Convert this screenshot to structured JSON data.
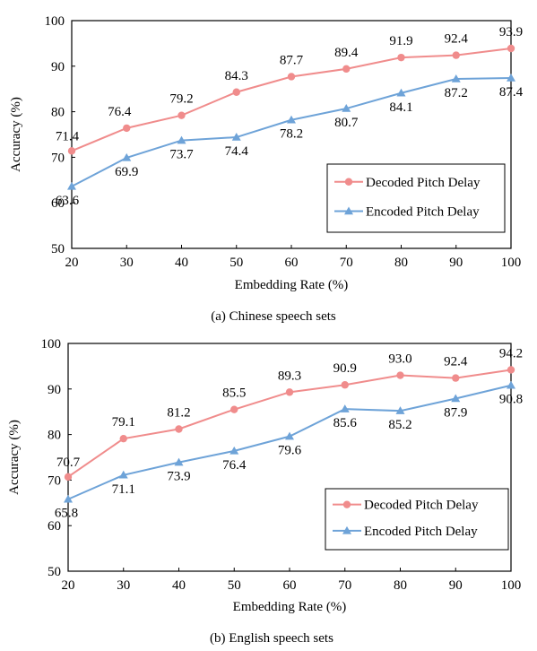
{
  "chart_data": [
    {
      "type": "line",
      "caption": "(a)  Chinese speech sets",
      "xlabel": "Embedding Rate (%)",
      "ylabel": "Accuracy (%)",
      "x": [
        20,
        30,
        40,
        50,
        60,
        70,
        80,
        90,
        100
      ],
      "xlim": [
        20,
        100
      ],
      "ylim": [
        50,
        100
      ],
      "yticks": [
        50,
        60,
        70,
        80,
        90,
        100
      ],
      "grid": false,
      "legend_position": "bottom-right",
      "series": [
        {
          "name": "Decoded Pitch Delay",
          "marker": "circle",
          "color": "#f08c8c",
          "values": [
            71.4,
            76.4,
            79.2,
            84.3,
            87.7,
            89.4,
            91.9,
            92.4,
            93.9
          ],
          "labels": [
            "71.4",
            "76.4",
            "79.2",
            "84.3",
            "87.7",
            "89.4",
            "91.9",
            "92.4",
            "93.9"
          ]
        },
        {
          "name": "Encoded Pitch Delay",
          "marker": "triangle",
          "color": "#6ea3d8",
          "values": [
            63.6,
            69.9,
            73.7,
            74.4,
            78.2,
            80.7,
            84.1,
            87.2,
            87.4
          ],
          "labels": [
            "63.6",
            "69.9",
            "73.7",
            "74.4",
            "78.2",
            "80.7",
            "84.1",
            "87.2",
            "87.4"
          ]
        }
      ]
    },
    {
      "type": "line",
      "caption": "(b)  English speech sets",
      "xlabel": "Embedding Rate (%)",
      "ylabel": "Accuracy (%)",
      "x": [
        20,
        30,
        40,
        50,
        60,
        70,
        80,
        90,
        100
      ],
      "xlim": [
        20,
        100
      ],
      "ylim": [
        50,
        100
      ],
      "yticks": [
        50,
        60,
        70,
        80,
        90,
        100
      ],
      "grid": false,
      "legend_position": "bottom-right",
      "series": [
        {
          "name": "Decoded Pitch Delay",
          "marker": "circle",
          "color": "#f08c8c",
          "values": [
            70.7,
            79.1,
            81.2,
            85.5,
            89.3,
            90.9,
            93.0,
            92.4,
            94.2
          ],
          "labels": [
            "70.7",
            "79.1",
            "81.2",
            "85.5",
            "89.3",
            "90.9",
            "93.0",
            "92.4",
            "94.2"
          ]
        },
        {
          "name": "Encoded Pitch Delay",
          "marker": "triangle",
          "color": "#6ea3d8",
          "values": [
            65.8,
            71.1,
            73.9,
            76.4,
            79.6,
            85.6,
            85.2,
            87.9,
            90.8
          ],
          "labels": [
            "65.8",
            "71.1",
            "73.9",
            "76.4",
            "79.6",
            "85.6",
            "85.2",
            "87.9",
            "90.8"
          ]
        }
      ]
    }
  ]
}
